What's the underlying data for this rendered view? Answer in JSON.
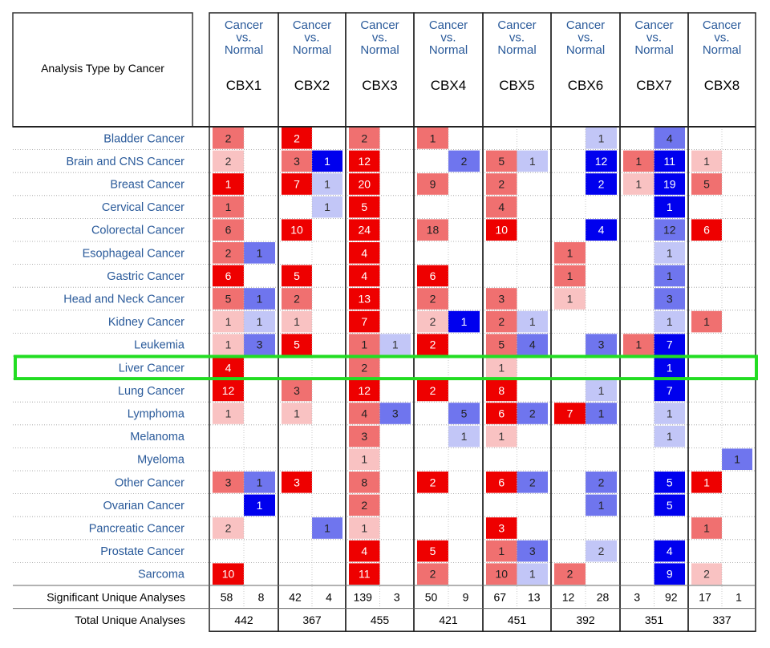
{
  "chart_data": {
    "type": "heatmap",
    "corner_label": "Analysis Type by Cancer",
    "column_subheader": [
      "Cancer",
      "vs.",
      "Normal"
    ],
    "genes": [
      "CBX1",
      "CBX2",
      "CBX3",
      "CBX4",
      "CBX5",
      "CBX6",
      "CBX7",
      "CBX8"
    ],
    "cancers": [
      "Bladder Cancer",
      "Brain and CNS Cancer",
      "Breast Cancer",
      "Cervical Cancer",
      "Colorectal Cancer",
      "Esophageal Cancer",
      "Gastric Cancer",
      "Head and Neck Cancer",
      "Kidney Cancer",
      "Leukemia",
      "Liver Cancer",
      "Lung Cancer",
      "Lymphoma",
      "Melanoma",
      "Myeloma",
      "Other Cancer",
      "Ovarian Cancer",
      "Pancreatic Cancer",
      "Prostate Cancer",
      "Sarcoma"
    ],
    "highlighted_row": "Liver Cancer",
    "highlight_color": "#22dd22",
    "up_color": "#ee0000",
    "down_color": "#0000ee",
    "cells_note": "per gene: [over-expression count, intensity 1-3], [under-expression count, intensity 1-3]; null = empty",
    "cells": {
      "Bladder Cancer": [
        [
          [
            2,
            2
          ],
          null
        ],
        [
          [
            2,
            3
          ],
          null
        ],
        [
          [
            2,
            2
          ],
          null
        ],
        [
          [
            1,
            2
          ],
          null
        ],
        [
          null,
          null
        ],
        [
          null,
          [
            1,
            1
          ]
        ],
        [
          null,
          [
            4,
            2
          ]
        ],
        [
          null,
          null
        ]
      ],
      "Brain and CNS Cancer": [
        [
          [
            2,
            1
          ],
          null
        ],
        [
          [
            3,
            2
          ],
          [
            1,
            3
          ]
        ],
        [
          [
            12,
            3
          ],
          null
        ],
        [
          null,
          [
            2,
            2
          ]
        ],
        [
          [
            5,
            2
          ],
          [
            1,
            1
          ]
        ],
        [
          null,
          [
            12,
            3
          ]
        ],
        [
          [
            1,
            2
          ],
          [
            11,
            3
          ]
        ],
        [
          [
            1,
            1
          ],
          null
        ]
      ],
      "Breast Cancer": [
        [
          [
            1,
            3
          ],
          null
        ],
        [
          [
            7,
            3
          ],
          [
            1,
            1
          ]
        ],
        [
          [
            20,
            3
          ],
          null
        ],
        [
          [
            9,
            2
          ],
          null
        ],
        [
          [
            2,
            2
          ],
          null
        ],
        [
          null,
          [
            2,
            3
          ]
        ],
        [
          [
            1,
            1
          ],
          [
            19,
            3
          ]
        ],
        [
          [
            5,
            2
          ],
          null
        ]
      ],
      "Cervical Cancer": [
        [
          [
            1,
            2
          ],
          null
        ],
        [
          null,
          [
            1,
            1
          ]
        ],
        [
          [
            5,
            3
          ],
          null
        ],
        [
          null,
          null
        ],
        [
          [
            4,
            2
          ],
          null
        ],
        [
          null,
          null
        ],
        [
          null,
          [
            1,
            3
          ]
        ],
        [
          null,
          null
        ]
      ],
      "Colorectal Cancer": [
        [
          [
            6,
            2
          ],
          null
        ],
        [
          [
            10,
            3
          ],
          null
        ],
        [
          [
            24,
            3
          ],
          null
        ],
        [
          [
            18,
            2
          ],
          null
        ],
        [
          [
            10,
            3
          ],
          null
        ],
        [
          null,
          [
            4,
            3
          ]
        ],
        [
          null,
          [
            12,
            2
          ]
        ],
        [
          [
            6,
            3
          ],
          null
        ]
      ],
      "Esophageal Cancer": [
        [
          [
            2,
            2
          ],
          [
            1,
            2
          ]
        ],
        [
          null,
          null
        ],
        [
          [
            4,
            3
          ],
          null
        ],
        [
          null,
          null
        ],
        [
          null,
          null
        ],
        [
          [
            1,
            2
          ],
          null
        ],
        [
          null,
          [
            1,
            1
          ]
        ],
        [
          null,
          null
        ]
      ],
      "Gastric Cancer": [
        [
          [
            6,
            3
          ],
          null
        ],
        [
          [
            5,
            3
          ],
          null
        ],
        [
          [
            4,
            3
          ],
          null
        ],
        [
          [
            6,
            3
          ],
          null
        ],
        [
          null,
          null
        ],
        [
          [
            1,
            2
          ],
          null
        ],
        [
          null,
          [
            1,
            2
          ]
        ],
        [
          null,
          null
        ]
      ],
      "Head and Neck Cancer": [
        [
          [
            5,
            2
          ],
          [
            1,
            2
          ]
        ],
        [
          [
            2,
            2
          ],
          null
        ],
        [
          [
            13,
            3
          ],
          null
        ],
        [
          [
            2,
            2
          ],
          null
        ],
        [
          [
            3,
            2
          ],
          null
        ],
        [
          [
            1,
            1
          ],
          null
        ],
        [
          null,
          [
            3,
            2
          ]
        ],
        [
          null,
          null
        ]
      ],
      "Kidney Cancer": [
        [
          [
            1,
            1
          ],
          [
            1,
            1
          ]
        ],
        [
          [
            1,
            1
          ],
          null
        ],
        [
          [
            7,
            3
          ],
          null
        ],
        [
          [
            2,
            1
          ],
          [
            1,
            3
          ]
        ],
        [
          [
            2,
            2
          ],
          [
            1,
            1
          ]
        ],
        [
          null,
          null
        ],
        [
          null,
          [
            1,
            1
          ]
        ],
        [
          [
            1,
            2
          ],
          null
        ]
      ],
      "Leukemia": [
        [
          [
            1,
            1
          ],
          [
            3,
            2
          ]
        ],
        [
          [
            5,
            3
          ],
          null
        ],
        [
          [
            1,
            2
          ],
          [
            1,
            1
          ]
        ],
        [
          [
            2,
            3
          ],
          null
        ],
        [
          [
            5,
            2
          ],
          [
            4,
            2
          ]
        ],
        [
          null,
          [
            3,
            2
          ]
        ],
        [
          [
            1,
            2
          ],
          [
            7,
            3
          ]
        ],
        [
          null,
          null
        ]
      ],
      "Liver Cancer": [
        [
          [
            4,
            3
          ],
          null
        ],
        [
          null,
          null
        ],
        [
          [
            2,
            2
          ],
          null
        ],
        [
          null,
          null
        ],
        [
          [
            1,
            1
          ],
          null
        ],
        [
          null,
          null
        ],
        [
          null,
          [
            1,
            3
          ]
        ],
        [
          null,
          null
        ]
      ],
      "Lung Cancer": [
        [
          [
            12,
            3
          ],
          null
        ],
        [
          [
            3,
            2
          ],
          null
        ],
        [
          [
            12,
            3
          ],
          null
        ],
        [
          [
            2,
            3
          ],
          null
        ],
        [
          [
            8,
            3
          ],
          null
        ],
        [
          null,
          [
            1,
            1
          ]
        ],
        [
          null,
          [
            7,
            3
          ]
        ],
        [
          null,
          null
        ]
      ],
      "Lymphoma": [
        [
          [
            1,
            1
          ],
          null
        ],
        [
          [
            1,
            1
          ],
          null
        ],
        [
          [
            4,
            2
          ],
          [
            3,
            2
          ]
        ],
        [
          null,
          [
            5,
            2
          ]
        ],
        [
          [
            6,
            3
          ],
          [
            2,
            2
          ]
        ],
        [
          [
            7,
            3
          ],
          [
            1,
            2
          ]
        ],
        [
          null,
          [
            1,
            1
          ]
        ],
        [
          null,
          null
        ]
      ],
      "Melanoma": [
        [
          null,
          null
        ],
        [
          null,
          null
        ],
        [
          [
            3,
            2
          ],
          null
        ],
        [
          null,
          [
            1,
            1
          ]
        ],
        [
          [
            1,
            1
          ],
          null
        ],
        [
          null,
          null
        ],
        [
          null,
          [
            1,
            1
          ]
        ],
        [
          null,
          null
        ]
      ],
      "Myeloma": [
        [
          null,
          null
        ],
        [
          null,
          null
        ],
        [
          [
            1,
            1
          ],
          null
        ],
        [
          null,
          null
        ],
        [
          null,
          null
        ],
        [
          null,
          null
        ],
        [
          null,
          null
        ],
        [
          null,
          [
            1,
            2
          ]
        ]
      ],
      "Other Cancer": [
        [
          [
            3,
            2
          ],
          [
            1,
            2
          ]
        ],
        [
          [
            3,
            3
          ],
          null
        ],
        [
          [
            8,
            2
          ],
          null
        ],
        [
          [
            2,
            3
          ],
          null
        ],
        [
          [
            6,
            3
          ],
          [
            2,
            2
          ]
        ],
        [
          null,
          [
            2,
            2
          ]
        ],
        [
          null,
          [
            5,
            3
          ]
        ],
        [
          [
            1,
            3
          ],
          null
        ]
      ],
      "Ovarian Cancer": [
        [
          null,
          [
            1,
            3
          ]
        ],
        [
          null,
          null
        ],
        [
          [
            2,
            2
          ],
          null
        ],
        [
          null,
          null
        ],
        [
          null,
          null
        ],
        [
          null,
          [
            1,
            2
          ]
        ],
        [
          null,
          [
            5,
            3
          ]
        ],
        [
          null,
          null
        ]
      ],
      "Pancreatic Cancer": [
        [
          [
            2,
            1
          ],
          null
        ],
        [
          null,
          [
            1,
            2
          ]
        ],
        [
          [
            1,
            1
          ],
          null
        ],
        [
          null,
          null
        ],
        [
          [
            3,
            3
          ],
          null
        ],
        [
          null,
          null
        ],
        [
          null,
          null
        ],
        [
          [
            1,
            2
          ],
          null
        ]
      ],
      "Prostate Cancer": [
        [
          null,
          null
        ],
        [
          null,
          null
        ],
        [
          [
            4,
            3
          ],
          null
        ],
        [
          [
            5,
            3
          ],
          null
        ],
        [
          [
            1,
            2
          ],
          [
            3,
            2
          ]
        ],
        [
          null,
          [
            2,
            1
          ]
        ],
        [
          null,
          [
            4,
            3
          ]
        ],
        [
          null,
          null
        ]
      ],
      "Sarcoma": [
        [
          [
            10,
            3
          ],
          null
        ],
        [
          null,
          null
        ],
        [
          [
            11,
            3
          ],
          null
        ],
        [
          [
            2,
            2
          ],
          null
        ],
        [
          [
            10,
            2
          ],
          [
            1,
            1
          ]
        ],
        [
          [
            2,
            2
          ],
          null
        ],
        [
          null,
          [
            9,
            3
          ]
        ],
        [
          [
            2,
            1
          ],
          null
        ]
      ]
    },
    "summary": {
      "significant_label": "Significant Unique Analyses",
      "total_label": "Total Unique Analyses",
      "significant": [
        [
          58,
          8
        ],
        [
          42,
          4
        ],
        [
          139,
          3
        ],
        [
          50,
          9
        ],
        [
          67,
          13
        ],
        [
          12,
          28
        ],
        [
          3,
          92
        ],
        [
          17,
          1
        ]
      ],
      "total": [
        442,
        367,
        455,
        421,
        451,
        392,
        351,
        337
      ]
    }
  }
}
